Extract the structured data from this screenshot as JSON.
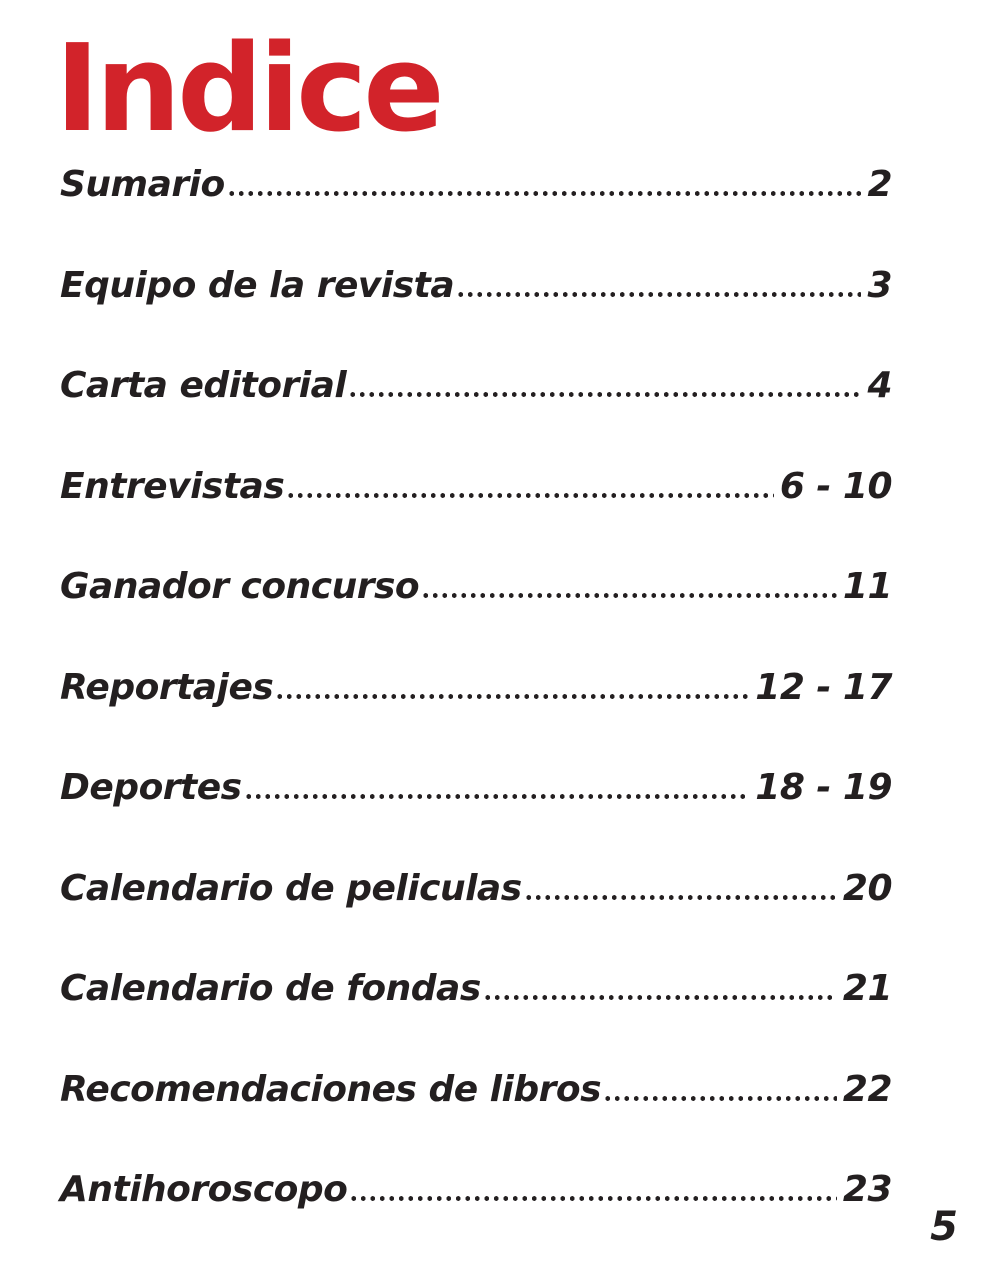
{
  "page": {
    "title": "Indice",
    "folio": "5",
    "colors": {
      "accent_red": "#d2232a",
      "ink": "#231f20",
      "background": "#ffffff"
    }
  },
  "toc": {
    "entries": [
      {
        "label": "Sumario",
        "page": "2"
      },
      {
        "label": "Equipo de la revista",
        "page": "3"
      },
      {
        "label": "Carta editorial",
        "page": "4"
      },
      {
        "label": "Entrevistas",
        "page": "6 - 10"
      },
      {
        "label": "Ganador concurso",
        "page": "11"
      },
      {
        "label": "Reportajes",
        "page": "12 - 17"
      },
      {
        "label": "Deportes",
        "page": "18 - 19"
      },
      {
        "label": "Calendario de peliculas",
        "page": "20"
      },
      {
        "label": "Calendario de fondas",
        "page": "21"
      },
      {
        "label": "Recomendaciones de libros",
        "page": "22"
      },
      {
        "label": "Antihoroscopo",
        "page": "23"
      }
    ]
  }
}
